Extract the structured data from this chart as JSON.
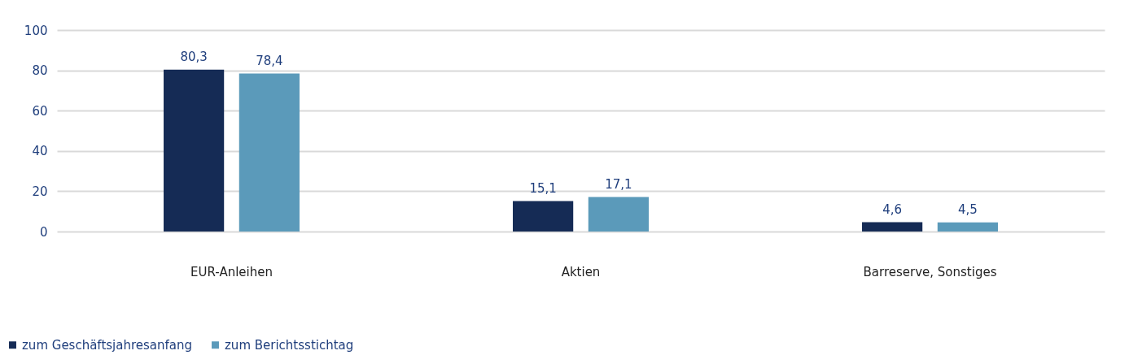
{
  "chart_data": {
    "type": "bar",
    "categories": [
      "EUR-Anleihen",
      "Aktien",
      "Barreserve, Sonstiges"
    ],
    "series": [
      {
        "name": "zum Geschäftsjahresanfang",
        "color": "#152b55",
        "values": [
          80.3,
          15.1,
          4.6
        ],
        "value_labels": [
          "80,3",
          "15,1",
          "4,6"
        ]
      },
      {
        "name": "zum Berichtsstichtag",
        "color": "#5b9aba",
        "values": [
          78.4,
          17.1,
          4.5
        ],
        "value_labels": [
          "78,4",
          "17,1",
          "4,5"
        ]
      }
    ],
    "ylim": [
      0,
      100
    ],
    "yticks": [
      0,
      20,
      40,
      60,
      80,
      100
    ],
    "grid": "y",
    "legend": "bottom left"
  }
}
